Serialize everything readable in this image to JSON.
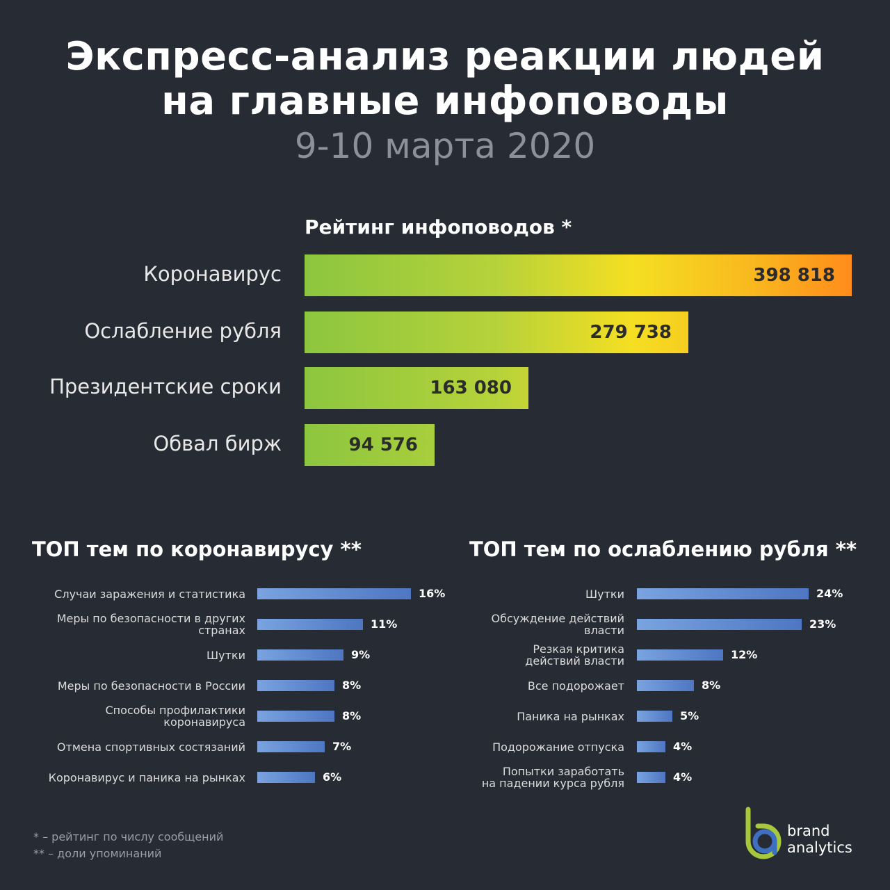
{
  "title_line1": "Экспресс-анализ реакции людей",
  "title_line2": "на главные инфоповоды",
  "subtitle": "9-10 марта 2020",
  "ranking": {
    "title": "Рейтинг инфоповодов *",
    "items": [
      {
        "label": "Коронавирус",
        "value": "398 818"
      },
      {
        "label": "Ослабление рубля",
        "value": "279 738"
      },
      {
        "label": "Президентские сроки",
        "value": "163 080"
      },
      {
        "label": "Обвал бирж",
        "value": "94 576"
      }
    ]
  },
  "corona": {
    "title": "ТОП тем по коронавирусу **",
    "items": [
      {
        "label": "Случаи заражения и статистика",
        "value": "16%"
      },
      {
        "label": "Меры по безопасности в других\nстранах",
        "value": "11%"
      },
      {
        "label": "Шутки",
        "value": "9%"
      },
      {
        "label": "Меры по безопасности в России",
        "value": "8%"
      },
      {
        "label": "Способы профилактики\nкоронавируса",
        "value": "8%"
      },
      {
        "label": "Отмена спортивных состязаний",
        "value": "7%"
      },
      {
        "label": "Коронавирус и паника на рынках",
        "value": "6%"
      }
    ]
  },
  "ruble": {
    "title": "ТОП тем по ослаблению рубля **",
    "items": [
      {
        "label": "Шутки",
        "value": "24%"
      },
      {
        "label": "Обсуждение действий\nвласти",
        "value": "23%"
      },
      {
        "label": "Резкая критика\nдействий власти",
        "value": "12%"
      },
      {
        "label": "Все подорожает",
        "value": "8%"
      },
      {
        "label": "Паника на рынках",
        "value": "5%"
      },
      {
        "label": "Подорожание отпуска",
        "value": "4%"
      },
      {
        "label": "Попытки заработать\nна падении курса рубля",
        "value": "4%"
      }
    ]
  },
  "footnotes": {
    "note1": "* – рейтинг по числу сообщений",
    "note2": "** – доли упоминаний"
  },
  "logo": {
    "line1": "brand",
    "line2": "analytics"
  },
  "chart_data": [
    {
      "type": "bar",
      "title": "Рейтинг инфоповодов *",
      "categories": [
        "Коронавирус",
        "Ослабление рубля",
        "Президентские сроки",
        "Обвал бирж"
      ],
      "values": [
        398818,
        279738,
        163080,
        94576
      ]
    },
    {
      "type": "bar",
      "title": "ТОП тем по коронавирусу **",
      "categories": [
        "Случаи заражения и статистика",
        "Меры по безопасности в других странах",
        "Шутки",
        "Меры по безопасности в России",
        "Способы профилактики коронавируса",
        "Отмена спортивных состязаний",
        "Коронавирус и паника на рынках"
      ],
      "values": [
        16,
        11,
        9,
        8,
        8,
        7,
        6
      ]
    },
    {
      "type": "bar",
      "title": "ТОП тем по ослаблению рубля **",
      "categories": [
        "Шутки",
        "Обсуждение действий власти",
        "Резкая критика действий власти",
        "Все подорожает",
        "Паника на рынках",
        "Подорожание отпуска",
        "Попытки заработать на падении курса рубля"
      ],
      "values": [
        24,
        23,
        12,
        8,
        5,
        4,
        4
      ]
    }
  ]
}
